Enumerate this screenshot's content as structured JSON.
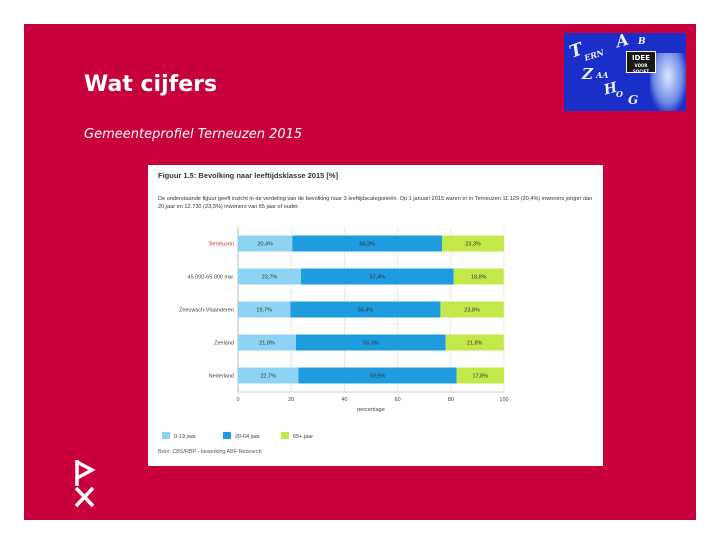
{
  "slide": {
    "title": "Wat cijfers",
    "subtitle": "Gemeenteprofiel Terneuzen 2015",
    "background": "#c8003c"
  },
  "logo": {
    "letters": [
      "A",
      "T",
      "Z",
      "H",
      "G",
      "B"
    ],
    "words": [
      "ERN",
      "AA",
      "O"
    ],
    "badge_line1": "IDEE",
    "badge_line2": "VOOR SOCIET"
  },
  "figure": {
    "title": "Figuur 1.5: Bevolking naar leeftijdsklasse 2015 [%]",
    "text": "De onderstaande figuur geeft inzicht in de verdeling van de bevolking naar 3 leeftijdscategorieën. Op 1 januari 2015 waren er in Terneuzen 11.129 (20,4%) inwoners jonger dan 20 jaar en 12.730 (23,3%) inwoners van 65 jaar of ouder.",
    "source": "Bron: CBS/RBP - bewerking ABF Research"
  },
  "chart_data": {
    "type": "bar",
    "orientation": "horizontal",
    "stacked": true,
    "title": "Figuur 1.5: Bevolking naar leeftijdsklasse 2015 [%]",
    "xlabel": "percentage",
    "ylabel": "",
    "xlim": [
      0,
      100
    ],
    "xticks": [
      "0",
      "20",
      "40",
      "60",
      "80",
      "100"
    ],
    "categories": [
      "Terneuzen",
      "45.000-65.000 inw.",
      "Zeeuwsch-Vlaanderen",
      "Zeeland",
      "Nederland"
    ],
    "highlight_category": "Terneuzen",
    "series": [
      {
        "name": "0-19 jaar",
        "color": "#8fd3f4",
        "values": [
          20.4,
          23.7,
          19.7,
          21.8,
          22.7
        ],
        "labels": [
          "20,4%",
          "23,7%",
          "19,7%",
          "21,8%",
          "22,7%"
        ]
      },
      {
        "name": "20-64 jaar",
        "color": "#1e9ce0",
        "values": [
          56.3,
          57.4,
          56.4,
          56.3,
          59.5
        ],
        "labels": [
          "56,3%",
          "57,4%",
          "56,4%",
          "56,3%",
          "59,5%"
        ]
      },
      {
        "name": "65+ jaar",
        "color": "#c3e84a",
        "values": [
          23.3,
          18.8,
          23.8,
          21.8,
          17.8
        ],
        "labels": [
          "23,3%",
          "18,8%",
          "23,8%",
          "21,8%",
          "17,8%"
        ]
      }
    ],
    "grid": true,
    "legend": "bottom"
  }
}
